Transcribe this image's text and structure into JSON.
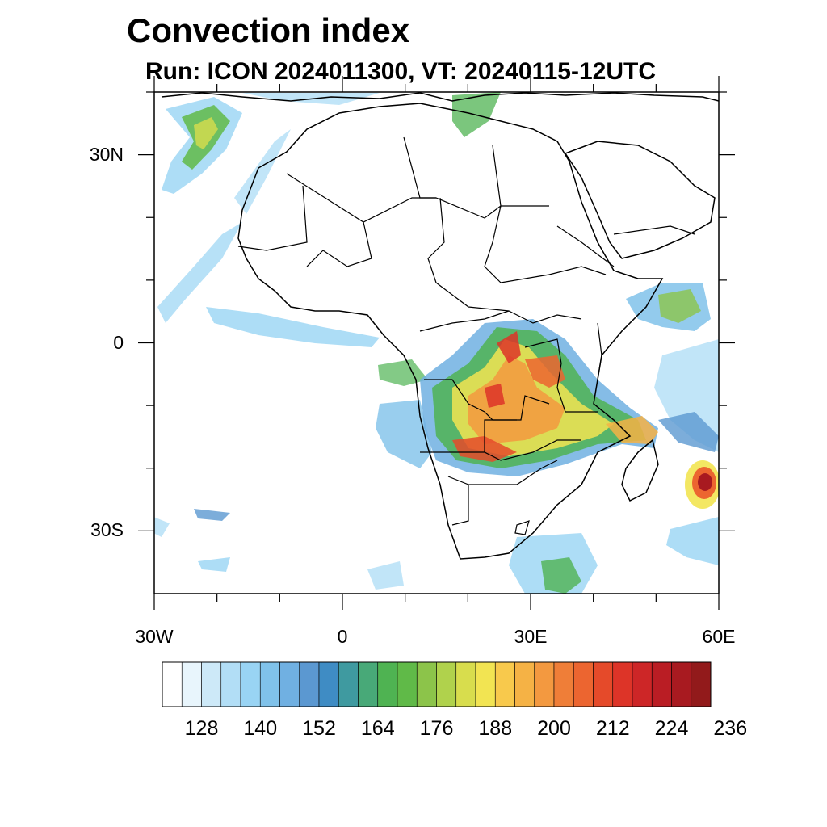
{
  "title": "Convection index",
  "subtitle": "Run: ICON 2024011300,  VT: 20240115-12UTC",
  "map": {
    "lon_range": [
      -30,
      60
    ],
    "lat_range": [
      -40,
      40
    ],
    "x_ticks": [
      {
        "lon": -30,
        "label": "30W"
      },
      {
        "lon": 0,
        "label": "0"
      },
      {
        "lon": 30,
        "label": "30E"
      },
      {
        "lon": 60,
        "label": "60E"
      }
    ],
    "y_ticks": [
      {
        "lat": 30,
        "label": "30N"
      },
      {
        "lat": 0,
        "label": "0"
      },
      {
        "lat": -30,
        "label": "30S"
      }
    ]
  },
  "colorbar": {
    "colors": [
      "#ffffff",
      "#e8f5fc",
      "#cde9f8",
      "#b2def6",
      "#99d4f4",
      "#80c2ea",
      "#70b0e2",
      "#5b98d1",
      "#3f8cc4",
      "#3f9aa0",
      "#48a978",
      "#4fb352",
      "#60ba48",
      "#8cc44a",
      "#b0d24c",
      "#d8dd4d",
      "#f2e452",
      "#f8c94c",
      "#f5b245",
      "#f39940",
      "#ef7e38",
      "#ec6530",
      "#e54a2a",
      "#dd3428",
      "#cd2627",
      "#ba1d24",
      "#a81a20",
      "#921a1b"
    ],
    "labels": [
      "128",
      "140",
      "152",
      "164",
      "176",
      "188",
      "200",
      "212",
      "224",
      "236"
    ],
    "label_bins": [
      2,
      5,
      8,
      11,
      14,
      17,
      20,
      23,
      26,
      29
    ]
  }
}
